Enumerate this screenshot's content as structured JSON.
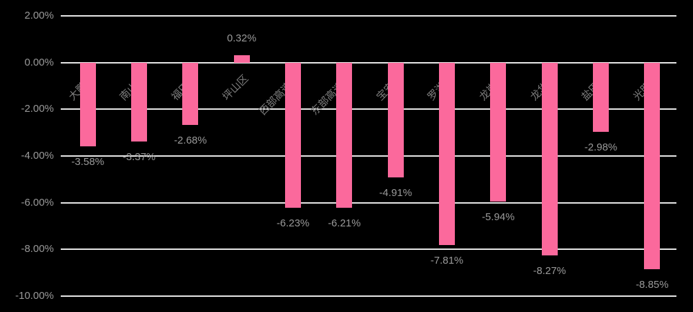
{
  "chart_data": {
    "type": "bar",
    "categories": [
      "大鹏区",
      "南山区",
      "福田区",
      "坪山区",
      "西部高速区",
      "东部高速区",
      "宝安区",
      "罗湖区",
      "龙岗区",
      "龙华区",
      "盐田区",
      "光明区"
    ],
    "values": [
      -3.58,
      -3.37,
      -2.68,
      0.32,
      -6.23,
      -6.21,
      -4.91,
      -7.81,
      -5.94,
      -8.27,
      -2.98,
      -8.85
    ],
    "data_labels": [
      "-3.58%",
      "-3.37%",
      "-2.68%",
      "0.32%",
      "-6.23%",
      "-6.21%",
      "-4.91%",
      "-7.81%",
      "-5.94%",
      "-8.27%",
      "-2.98%",
      "-8.85%"
    ],
    "title": "",
    "xlabel": "",
    "ylabel": "",
    "ylim": [
      -10,
      2
    ],
    "y_tick_labels": [
      "2.00%",
      "0.00%",
      "-2.00%",
      "-4.00%",
      "-6.00%",
      "-8.00%",
      "-10.00%"
    ],
    "y_tick_values": [
      2,
      0,
      -2,
      -4,
      -6,
      -8,
      -10
    ],
    "grid": true,
    "legend": false,
    "colors": {
      "bar": "#fb699c",
      "grid_line": "#e9e9e9",
      "background": "#000000",
      "tick_text": "#9a9a9a",
      "value_text": "#9a9a9a",
      "category_text": "#7d7d7d"
    }
  }
}
